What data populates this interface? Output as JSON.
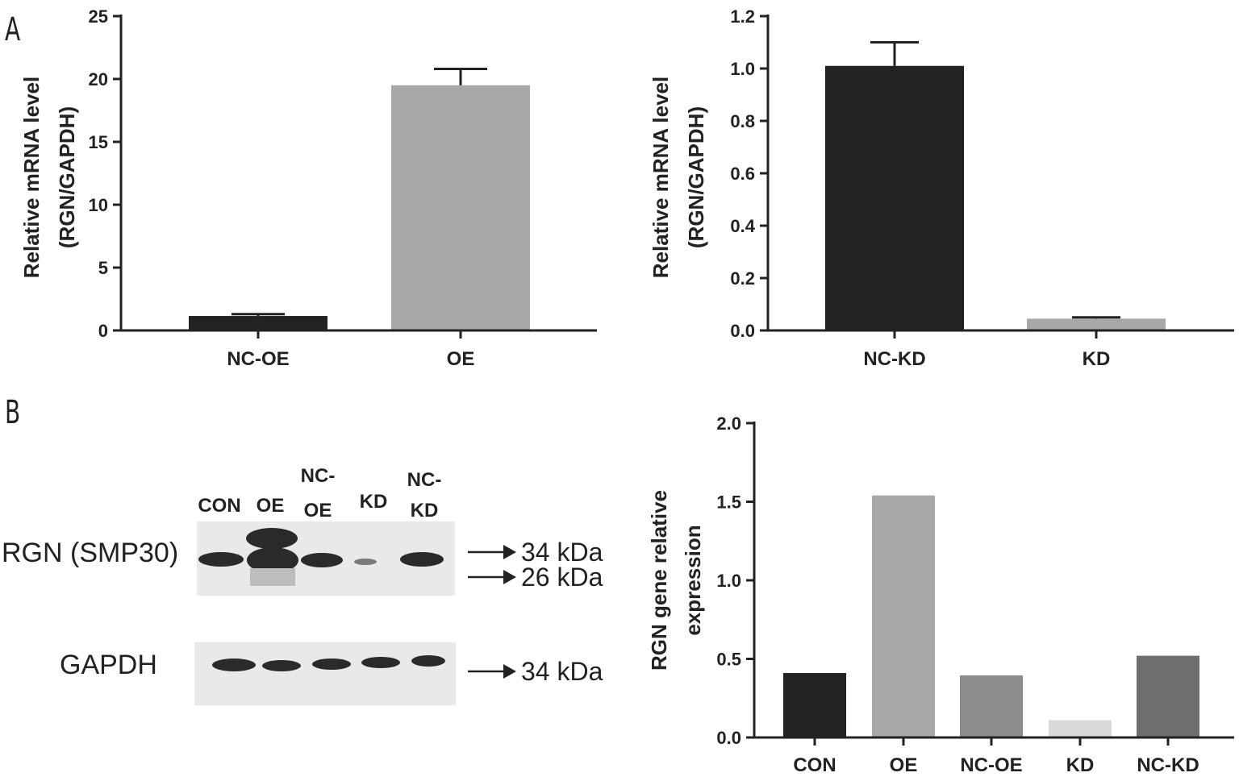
{
  "panel_labels": {
    "a": "A",
    "b": "B"
  },
  "chart_data": [
    {
      "type": "bar",
      "id": "chart-a1",
      "ylabel": [
        "Relative mRNA level",
        "(RGN/GAPDH)"
      ],
      "categories": [
        "NC-OE",
        "OE"
      ],
      "values": [
        1.15,
        19.5
      ],
      "errors": [
        0.15,
        1.3
      ],
      "ylim": [
        0,
        25
      ],
      "yticks": [
        "0",
        "5",
        "10",
        "15",
        "20",
        "25"
      ],
      "yticks_values": [
        0,
        5,
        10,
        15,
        20,
        25
      ],
      "colors": [
        "#222222",
        "#a8a8a8"
      ]
    },
    {
      "type": "bar",
      "id": "chart-a2",
      "ylabel": [
        "Relative mRNA level",
        "(RGN/GAPDH)"
      ],
      "categories": [
        "NC-KD",
        "KD"
      ],
      "values": [
        1.01,
        0.045
      ],
      "errors": [
        0.09,
        0.005
      ],
      "ylim": [
        0,
        1.2
      ],
      "yticks": [
        "0.0",
        "0.2",
        "0.4",
        "0.6",
        "0.8",
        "1.0",
        "1.2"
      ],
      "yticks_values": [
        0,
        0.2,
        0.4,
        0.6,
        0.8,
        1.0,
        1.2
      ],
      "colors": [
        "#222222",
        "#a8a8a8"
      ]
    },
    {
      "type": "bar",
      "id": "chart-b",
      "ylabel": [
        "RGN gene relative",
        "expression"
      ],
      "categories": [
        "CON",
        "OE",
        "NC-OE",
        "KD",
        "NC-KD"
      ],
      "values": [
        0.41,
        1.54,
        0.395,
        0.11,
        0.52
      ],
      "ylim": [
        0,
        2.0
      ],
      "yticks": [
        "0.0",
        "0.5",
        "1.0",
        "1.5",
        "2.0"
      ],
      "yticks_values": [
        0,
        0.5,
        1.0,
        1.5,
        2.0
      ],
      "colors": [
        "#222222",
        "#a8a8a8",
        "#8c8c8c",
        "#d9d9d9",
        "#6e6e6e"
      ]
    }
  ],
  "western_blot": {
    "lanes": [
      {
        "line1": "",
        "line2": "CON"
      },
      {
        "line1": "",
        "line2": "OE"
      },
      {
        "line1": "NC-",
        "line2": "OE"
      },
      {
        "line1": "",
        "line2": "KD"
      },
      {
        "line1": "NC-",
        "line2": "KD"
      }
    ],
    "rows": [
      {
        "label": "RGN (SMP30)",
        "markers": [
          "34 kDa",
          "26 kDa"
        ]
      },
      {
        "label": "GAPDH",
        "markers": [
          "34 kDa"
        ]
      }
    ]
  }
}
